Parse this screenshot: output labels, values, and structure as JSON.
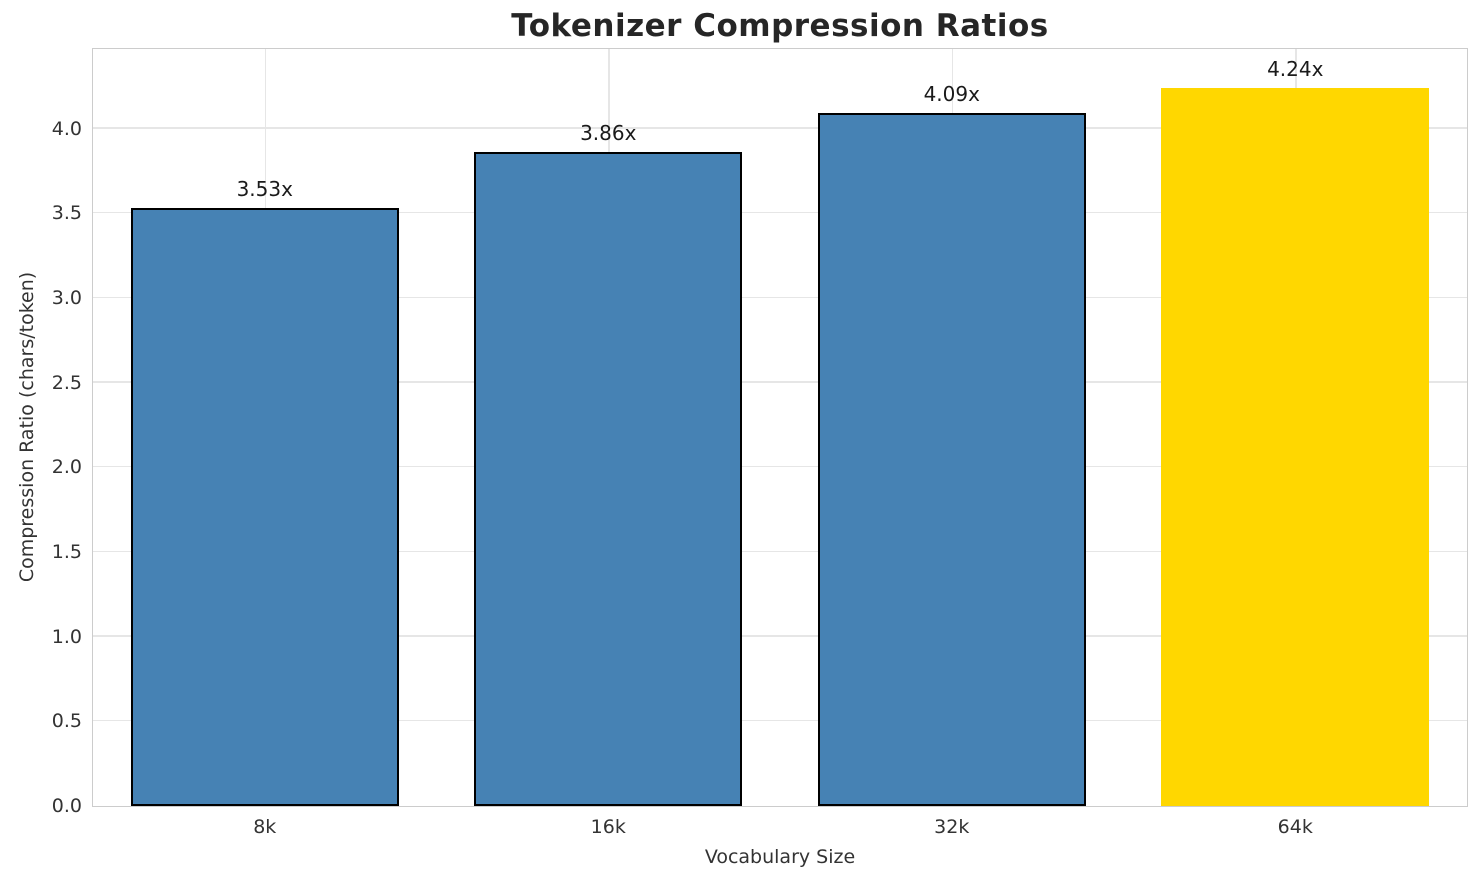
{
  "chart_data": {
    "type": "bar",
    "title": "Tokenizer Compression Ratios",
    "xlabel": "Vocabulary Size",
    "ylabel": "Compression Ratio (chars/token)",
    "categories": [
      "8k",
      "16k",
      "32k",
      "64k"
    ],
    "values": [
      3.53,
      3.86,
      4.09,
      4.24
    ],
    "bar_labels": [
      "3.53x",
      "3.86x",
      "4.09x",
      "4.24x"
    ],
    "bar_colors": [
      "#4682B4",
      "#4682B4",
      "#4682B4",
      "#FFD700"
    ],
    "bar_edge_colors": [
      "#000000",
      "#000000",
      "#000000",
      "none"
    ],
    "bar_width_fraction": 0.78,
    "ylim": [
      0,
      4.47
    ],
    "ytick_values": [
      0.0,
      0.5,
      1.0,
      1.5,
      2.0,
      2.5,
      3.0,
      3.5,
      4.0
    ],
    "ytick_labels": [
      "0.0",
      "0.5",
      "1.0",
      "1.5",
      "2.0",
      "2.5",
      "3.0",
      "3.5",
      "4.0"
    ],
    "grid": true,
    "legend_position": "none",
    "style_colors": {
      "background": "#ffffff",
      "grid": "#e6e6e6",
      "spine": "#cccccc",
      "title_text": "#262626",
      "tick_text": "#333333",
      "bar_value_text": "#1a1a1a",
      "accent_blue": "#4682B4",
      "accent_gold": "#FFD700"
    }
  }
}
